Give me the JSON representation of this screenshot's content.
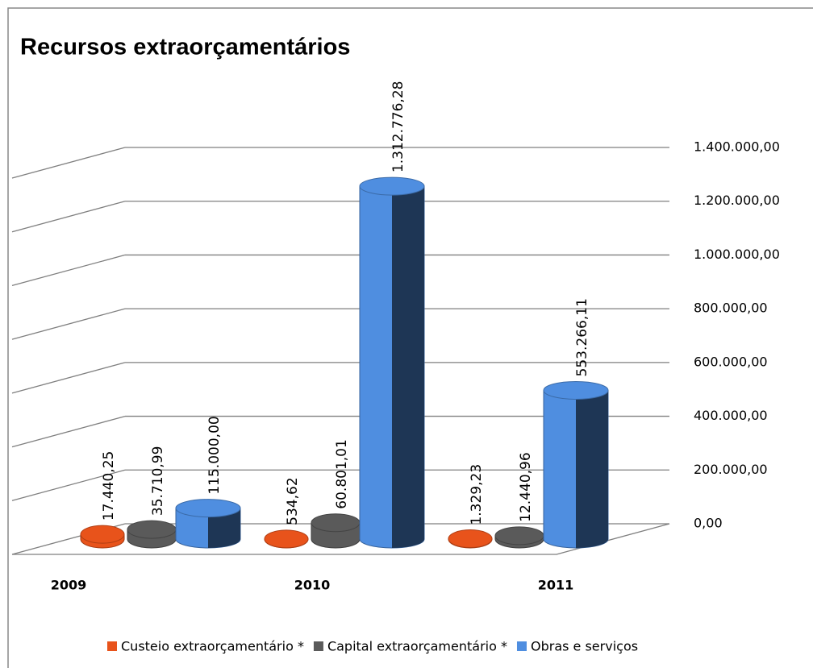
{
  "chart_data": {
    "type": "bar3d",
    "title": "Recursos extraorçamentários",
    "categories": [
      "2009",
      "2010",
      "2011"
    ],
    "series": [
      {
        "name": "Custeio extraorçamentário *",
        "color": "#e8531b",
        "values": [
          17440.25,
          534.62,
          1329.23
        ],
        "value_labels": [
          "17.440,25",
          "534,62",
          "1.329,23"
        ]
      },
      {
        "name": "Capital extraorçamentário *",
        "color": "#5a5a5a",
        "values": [
          35710.99,
          60801.01,
          12440.96
        ],
        "value_labels": [
          "35.710,99",
          "60.801,01",
          "12.440,96"
        ]
      },
      {
        "name": "Obras e serviços",
        "color": "#4f8ee0",
        "values": [
          115000.0,
          1312776.28,
          553266.11
        ],
        "value_labels": [
          "115.000,00",
          "1.312.776,28",
          "553.266,11"
        ]
      }
    ],
    "ylim": [
      0,
      1400000
    ],
    "yticks": [
      {
        "value": 0,
        "label": "0,00"
      },
      {
        "value": 200000,
        "label": "200.000,00"
      },
      {
        "value": 400000,
        "label": "400.000,00"
      },
      {
        "value": 600000,
        "label": "600.000,00"
      },
      {
        "value": 800000,
        "label": "800.000,00"
      },
      {
        "value": 1000000,
        "label": "1.000.000,00"
      },
      {
        "value": 1200000,
        "label": "1.200.000,00"
      },
      {
        "value": 1400000,
        "label": "1.400.000,00"
      }
    ],
    "grid": true,
    "legend": "bottom"
  }
}
